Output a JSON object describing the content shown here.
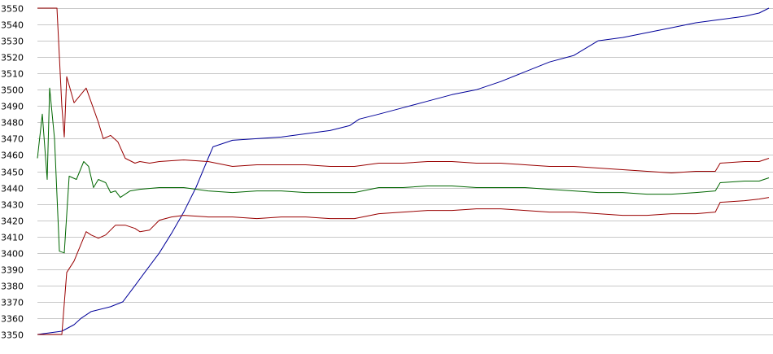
{
  "chart_data": {
    "type": "line",
    "title": "",
    "xlabel": "",
    "ylabel": "",
    "ylim": [
      3350,
      3550
    ],
    "y_ticks": [
      3350,
      3360,
      3370,
      3380,
      3390,
      3400,
      3410,
      3420,
      3430,
      3440,
      3450,
      3460,
      3470,
      3480,
      3490,
      3500,
      3510,
      3520,
      3530,
      3540,
      3550
    ],
    "x_axis_labels": false,
    "grid": "horizontal",
    "legend": "none",
    "x_count": 301,
    "series": [
      {
        "color": "#000099",
        "points": [
          [
            0,
            3350
          ],
          [
            5,
            3351
          ],
          [
            10,
            3352
          ],
          [
            15,
            3356
          ],
          [
            18,
            3360
          ],
          [
            22,
            3364
          ],
          [
            30,
            3367
          ],
          [
            35,
            3370
          ],
          [
            40,
            3380
          ],
          [
            45,
            3390
          ],
          [
            50,
            3400
          ],
          [
            55,
            3412
          ],
          [
            60,
            3425
          ],
          [
            65,
            3440
          ],
          [
            70,
            3458
          ],
          [
            72,
            3465
          ],
          [
            80,
            3469
          ],
          [
            90,
            3470
          ],
          [
            100,
            3471
          ],
          [
            110,
            3473
          ],
          [
            120,
            3475
          ],
          [
            128,
            3478
          ],
          [
            132,
            3482
          ],
          [
            140,
            3485
          ],
          [
            150,
            3489
          ],
          [
            160,
            3493
          ],
          [
            170,
            3497
          ],
          [
            180,
            3500
          ],
          [
            190,
            3505
          ],
          [
            200,
            3511
          ],
          [
            210,
            3517
          ],
          [
            220,
            3521
          ],
          [
            230,
            3530
          ],
          [
            240,
            3532
          ],
          [
            250,
            3535
          ],
          [
            260,
            3538
          ],
          [
            270,
            3541
          ],
          [
            280,
            3543
          ],
          [
            290,
            3545
          ],
          [
            296,
            3547
          ],
          [
            300,
            3550
          ]
        ]
      },
      {
        "color": "#006600",
        "points": [
          [
            0,
            3458
          ],
          [
            2,
            3485
          ],
          [
            4,
            3445
          ],
          [
            5,
            3501
          ],
          [
            7,
            3470
          ],
          [
            9,
            3401
          ],
          [
            11,
            3400
          ],
          [
            13,
            3447
          ],
          [
            16,
            3445
          ],
          [
            19,
            3456
          ],
          [
            21,
            3453
          ],
          [
            23,
            3440
          ],
          [
            25,
            3445
          ],
          [
            28,
            3443
          ],
          [
            30,
            3437
          ],
          [
            32,
            3438
          ],
          [
            34,
            3434
          ],
          [
            38,
            3438
          ],
          [
            42,
            3439
          ],
          [
            50,
            3440
          ],
          [
            60,
            3440
          ],
          [
            70,
            3438
          ],
          [
            80,
            3437
          ],
          [
            90,
            3438
          ],
          [
            100,
            3438
          ],
          [
            110,
            3437
          ],
          [
            120,
            3437
          ],
          [
            130,
            3437
          ],
          [
            140,
            3440
          ],
          [
            150,
            3440
          ],
          [
            160,
            3441
          ],
          [
            170,
            3441
          ],
          [
            180,
            3440
          ],
          [
            190,
            3440
          ],
          [
            200,
            3440
          ],
          [
            210,
            3439
          ],
          [
            220,
            3438
          ],
          [
            230,
            3437
          ],
          [
            240,
            3437
          ],
          [
            250,
            3436
          ],
          [
            260,
            3436
          ],
          [
            270,
            3437
          ],
          [
            278,
            3438
          ],
          [
            280,
            3443
          ],
          [
            290,
            3444
          ],
          [
            296,
            3444
          ],
          [
            300,
            3446
          ]
        ]
      },
      {
        "color": "#990000",
        "points": [
          [
            0,
            3550
          ],
          [
            5,
            3550
          ],
          [
            8,
            3550
          ],
          [
            10,
            3490
          ],
          [
            11,
            3471
          ],
          [
            12,
            3508
          ],
          [
            15,
            3492
          ],
          [
            20,
            3501
          ],
          [
            25,
            3480
          ],
          [
            27,
            3470
          ],
          [
            30,
            3472
          ],
          [
            33,
            3468
          ],
          [
            36,
            3458
          ],
          [
            40,
            3455
          ],
          [
            42,
            3456
          ],
          [
            46,
            3455
          ],
          [
            50,
            3456
          ],
          [
            60,
            3457
          ],
          [
            70,
            3456
          ],
          [
            80,
            3453
          ],
          [
            90,
            3454
          ],
          [
            100,
            3454
          ],
          [
            110,
            3454
          ],
          [
            120,
            3453
          ],
          [
            130,
            3453
          ],
          [
            140,
            3455
          ],
          [
            150,
            3455
          ],
          [
            160,
            3456
          ],
          [
            170,
            3456
          ],
          [
            180,
            3455
          ],
          [
            190,
            3455
          ],
          [
            200,
            3454
          ],
          [
            210,
            3453
          ],
          [
            220,
            3453
          ],
          [
            230,
            3452
          ],
          [
            240,
            3451
          ],
          [
            250,
            3450
          ],
          [
            260,
            3449
          ],
          [
            270,
            3450
          ],
          [
            278,
            3450
          ],
          [
            280,
            3455
          ],
          [
            290,
            3456
          ],
          [
            296,
            3456
          ],
          [
            300,
            3458
          ]
        ]
      },
      {
        "color": "#990000",
        "points": [
          [
            0,
            3350
          ],
          [
            10,
            3350
          ],
          [
            12,
            3388
          ],
          [
            15,
            3395
          ],
          [
            20,
            3413
          ],
          [
            22,
            3411
          ],
          [
            25,
            3409
          ],
          [
            28,
            3411
          ],
          [
            32,
            3417
          ],
          [
            36,
            3417
          ],
          [
            40,
            3415
          ],
          [
            42,
            3413
          ],
          [
            46,
            3414
          ],
          [
            50,
            3420
          ],
          [
            55,
            3422
          ],
          [
            60,
            3423
          ],
          [
            70,
            3422
          ],
          [
            80,
            3422
          ],
          [
            90,
            3421
          ],
          [
            100,
            3422
          ],
          [
            110,
            3422
          ],
          [
            120,
            3421
          ],
          [
            130,
            3421
          ],
          [
            140,
            3424
          ],
          [
            150,
            3425
          ],
          [
            160,
            3426
          ],
          [
            170,
            3426
          ],
          [
            180,
            3427
          ],
          [
            190,
            3427
          ],
          [
            200,
            3426
          ],
          [
            210,
            3425
          ],
          [
            220,
            3425
          ],
          [
            230,
            3424
          ],
          [
            240,
            3423
          ],
          [
            250,
            3423
          ],
          [
            260,
            3424
          ],
          [
            270,
            3424
          ],
          [
            278,
            3425
          ],
          [
            280,
            3431
          ],
          [
            290,
            3432
          ],
          [
            296,
            3433
          ],
          [
            300,
            3434
          ]
        ]
      }
    ]
  }
}
